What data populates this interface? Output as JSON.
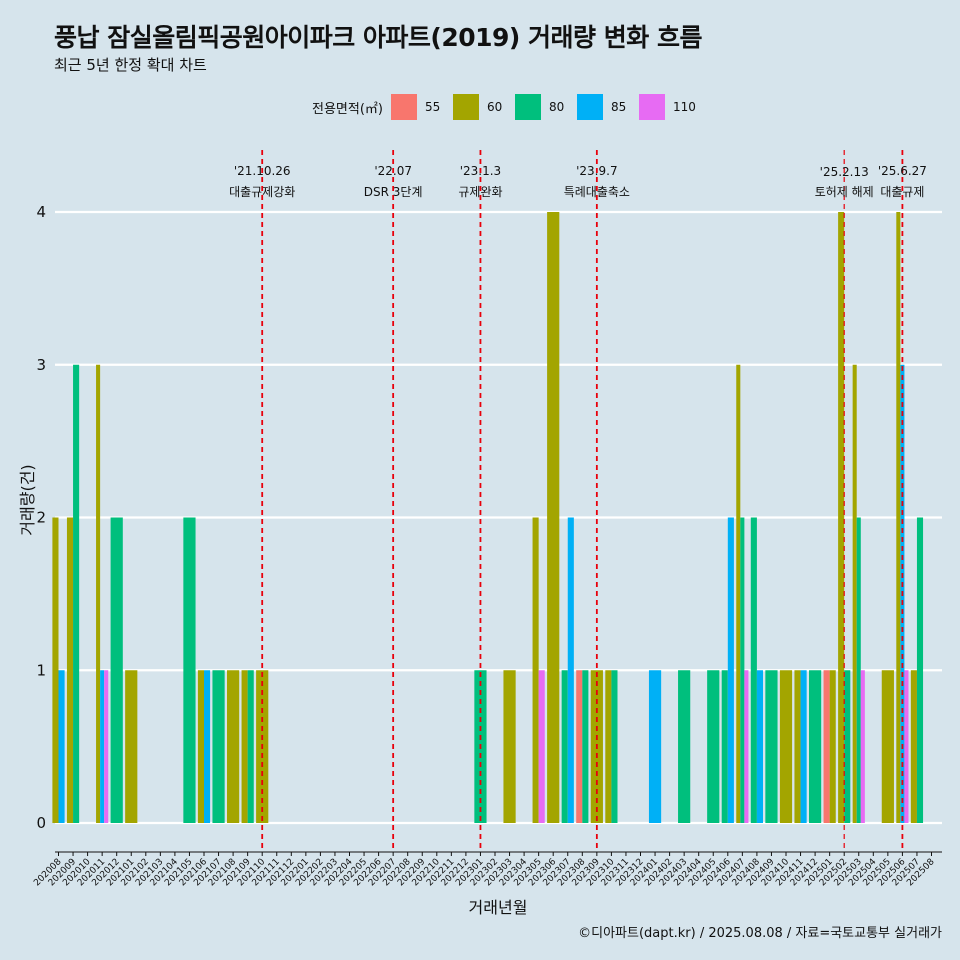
{
  "title": "풍납 잠실올림픽공원아이파크 아파트(2019) 거래량 변화 흐름",
  "subtitle": "최근 5년 한정 확대 차트",
  "caption": "©디아파트(dapt.kr) / 2025.08.08 / 자료=국토교통부 실거래가",
  "legend": {
    "title": "전용면적(㎡)",
    "items": [
      {
        "label": "55",
        "color": "#f8766d"
      },
      {
        "label": "60",
        "color": "#a3a500"
      },
      {
        "label": "80",
        "color": "#00bf7d"
      },
      {
        "label": "85",
        "color": "#00b0f6"
      },
      {
        "label": "110",
        "color": "#e76bf3"
      }
    ]
  },
  "chart_data": {
    "type": "bar",
    "xlabel": "거래년월",
    "ylabel": "거래량(건)",
    "ylim": [
      0,
      4
    ],
    "yticks": [
      0,
      1,
      2,
      3,
      4
    ],
    "grid": "horizontal",
    "legend_position": "top",
    "categories": [
      "202008",
      "202009",
      "202010",
      "202011",
      "202012",
      "202101",
      "202102",
      "202103",
      "202104",
      "202105",
      "202106",
      "202107",
      "202108",
      "202109",
      "202110",
      "202111",
      "202112",
      "202201",
      "202202",
      "202203",
      "202204",
      "202205",
      "202206",
      "202207",
      "202208",
      "202209",
      "202210",
      "202211",
      "202212",
      "202301",
      "202302",
      "202303",
      "202304",
      "202305",
      "202306",
      "202307",
      "202308",
      "202309",
      "202310",
      "202311",
      "202312",
      "202401",
      "202402",
      "202403",
      "202404",
      "202405",
      "202406",
      "202407",
      "202408",
      "202409",
      "202410",
      "202411",
      "202412",
      "202501",
      "202502",
      "202503",
      "202504",
      "202505",
      "202506",
      "202507",
      "202508"
    ],
    "bars": [
      {
        "month": "202008",
        "values": {
          "60": 2,
          "85": 1
        }
      },
      {
        "month": "202009",
        "values": {
          "60": 2,
          "80": 3
        }
      },
      {
        "month": "202011",
        "values": {
          "60": 3,
          "85": 1,
          "110": 1
        }
      },
      {
        "month": "202012",
        "values": {
          "80": 2
        }
      },
      {
        "month": "202101",
        "values": {
          "60": 1
        }
      },
      {
        "month": "202105",
        "values": {
          "80": 2
        }
      },
      {
        "month": "202106",
        "values": {
          "60": 1,
          "85": 1
        }
      },
      {
        "month": "202107",
        "values": {
          "80": 1
        }
      },
      {
        "month": "202108",
        "values": {
          "60": 1
        }
      },
      {
        "month": "202109",
        "values": {
          "60": 1,
          "80": 1
        }
      },
      {
        "month": "202110",
        "values": {
          "60": 1
        }
      },
      {
        "month": "202301",
        "values": {
          "80": 1
        }
      },
      {
        "month": "202303",
        "values": {
          "60": 1
        }
      },
      {
        "month": "202305",
        "values": {
          "60": 2,
          "110": 1
        }
      },
      {
        "month": "202306",
        "values": {
          "60": 4
        }
      },
      {
        "month": "202307",
        "values": {
          "80": 1,
          "85": 2
        }
      },
      {
        "month": "202308",
        "values": {
          "55": 1,
          "80": 1
        }
      },
      {
        "month": "202309",
        "values": {
          "60": 1
        }
      },
      {
        "month": "202310",
        "values": {
          "60": 1,
          "80": 1
        }
      },
      {
        "month": "202401",
        "values": {
          "85": 1
        }
      },
      {
        "month": "202403",
        "values": {
          "80": 1
        }
      },
      {
        "month": "202405",
        "values": {
          "80": 1
        }
      },
      {
        "month": "202406",
        "values": {
          "80": 1,
          "85": 2
        }
      },
      {
        "month": "202407",
        "values": {
          "60": 3,
          "80": 2,
          "110": 1
        }
      },
      {
        "month": "202408",
        "values": {
          "80": 2,
          "85": 1
        }
      },
      {
        "month": "202409",
        "values": {
          "80": 1
        }
      },
      {
        "month": "202410",
        "values": {
          "60": 1
        }
      },
      {
        "month": "202411",
        "values": {
          "60": 1,
          "85": 1
        }
      },
      {
        "month": "202412",
        "values": {
          "80": 1
        }
      },
      {
        "month": "202501",
        "values": {
          "55": 1,
          "60": 1
        }
      },
      {
        "month": "202502",
        "values": {
          "60": 4,
          "80": 1
        }
      },
      {
        "month": "202503",
        "values": {
          "60": 3,
          "80": 2,
          "110": 1
        }
      },
      {
        "month": "202505",
        "values": {
          "60": 1
        }
      },
      {
        "month": "202506",
        "values": {
          "60": 4,
          "85": 3,
          "110": 1
        }
      },
      {
        "month": "202507",
        "values": {
          "60": 1,
          "80": 2
        }
      }
    ],
    "events": [
      {
        "date_label": "'21.10.26",
        "desc": "대출규제강화",
        "month": "202110",
        "style": "normal"
      },
      {
        "date_label": "'22.07",
        "desc": "DSR 3단계",
        "month": "202207",
        "style": "normal"
      },
      {
        "date_label": "'23.1.3",
        "desc": "규제완화",
        "month": "202301",
        "style": "normal"
      },
      {
        "date_label": "'23.9.7",
        "desc": "특례대출축소",
        "month": "202309",
        "style": "normal"
      },
      {
        "date_label": "'25.2.13",
        "desc": "토허제 해제",
        "month": "202502",
        "style": "small"
      },
      {
        "date_label": "'25.6.27",
        "desc": "대출규제",
        "month": "202506",
        "style": "normal"
      }
    ]
  }
}
